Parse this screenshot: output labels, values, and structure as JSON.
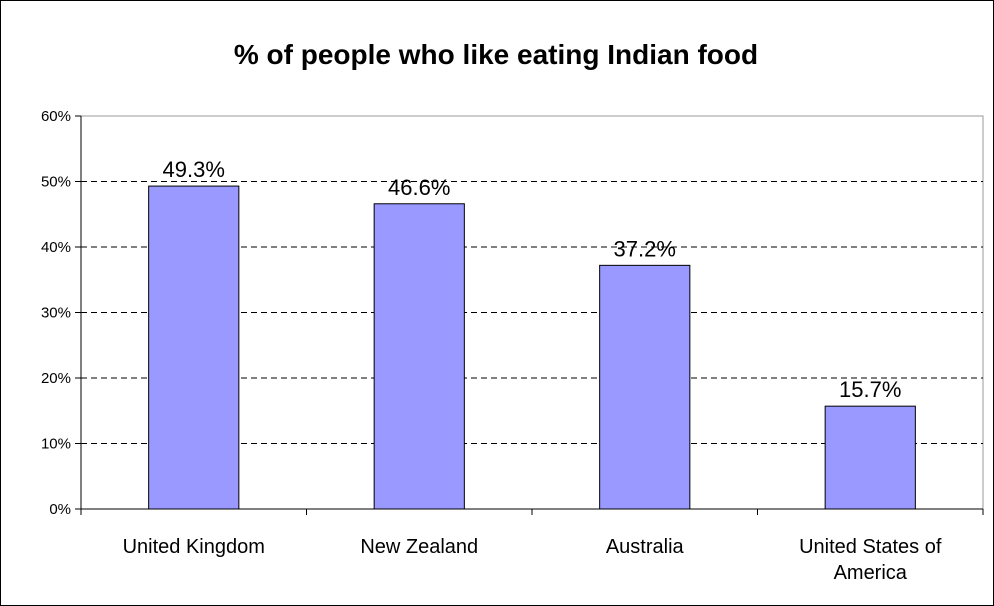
{
  "chart_data": {
    "type": "bar",
    "title": "% of people who like eating Indian food",
    "categories": [
      [
        "United Kingdom"
      ],
      [
        "New Zealand"
      ],
      [
        "Australia"
      ],
      [
        "United States of",
        "America"
      ]
    ],
    "values": [
      49.3,
      46.6,
      37.2,
      15.7
    ],
    "data_labels": [
      "49.3%",
      "46.6%",
      "37.2%",
      "15.7%"
    ],
    "ylim": [
      0,
      60
    ],
    "yticks": [
      0,
      10,
      20,
      30,
      40,
      50,
      60
    ],
    "ytick_labels": [
      "0%",
      "10%",
      "20%",
      "30%",
      "40%",
      "50%",
      "60%"
    ],
    "grid": "horizontal dashed",
    "legend": "none",
    "colors": {
      "bar_fill": "#9999ff",
      "bar_stroke": "#000000",
      "grid": "#000000",
      "axis": "#000000"
    }
  }
}
